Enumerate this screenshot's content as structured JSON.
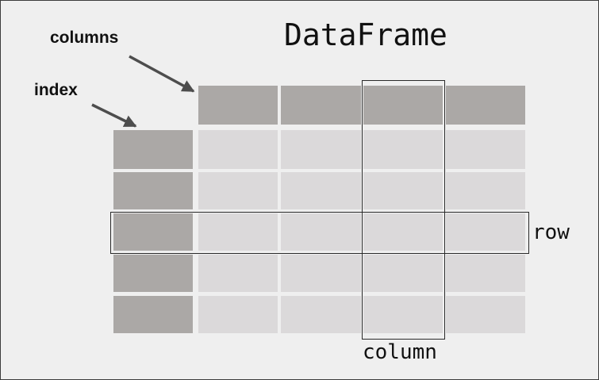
{
  "diagram": {
    "title": "DataFrame",
    "annotations": {
      "columns": "columns",
      "index": "index",
      "row": "row",
      "column": "column"
    },
    "grid": {
      "data_columns": 4,
      "rows": 5,
      "highlighted_column": 3,
      "highlighted_row": 3
    },
    "colors": {
      "background": "#efefef",
      "header_cell": "#aba8a6",
      "index_cell": "#aba8a6",
      "data_cell": "#dbd9da",
      "outline": "#2a2a2a"
    }
  }
}
